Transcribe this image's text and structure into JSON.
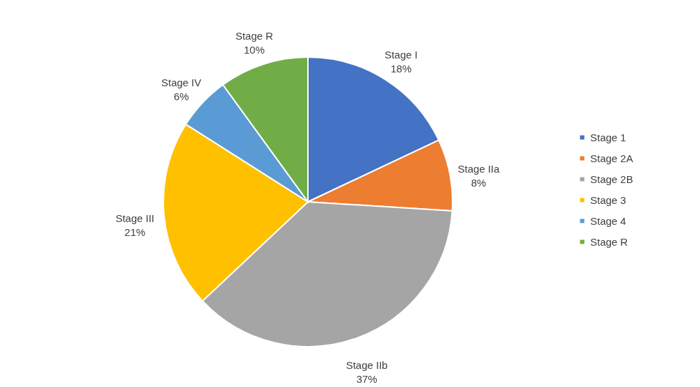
{
  "chart_data": {
    "type": "pie",
    "categories": [
      "Stage 1",
      "Stage 2A",
      "Stage 2B",
      "Stage 3",
      "Stage 4",
      "Stage R"
    ],
    "values": [
      18,
      8,
      37,
      21,
      6,
      10
    ],
    "colors": [
      "#4472c4",
      "#ed7d31",
      "#a5a5a5",
      "#ffc000",
      "#5b9bd5",
      "#70ad47"
    ],
    "value_labels": [
      "Stage I\n18%",
      "Stage IIa\n8%",
      "Stage IIb\n37%",
      "Stage III\n21%",
      "Stage IV\n6%",
      "Stage R\n10%"
    ],
    "legend": "right"
  }
}
